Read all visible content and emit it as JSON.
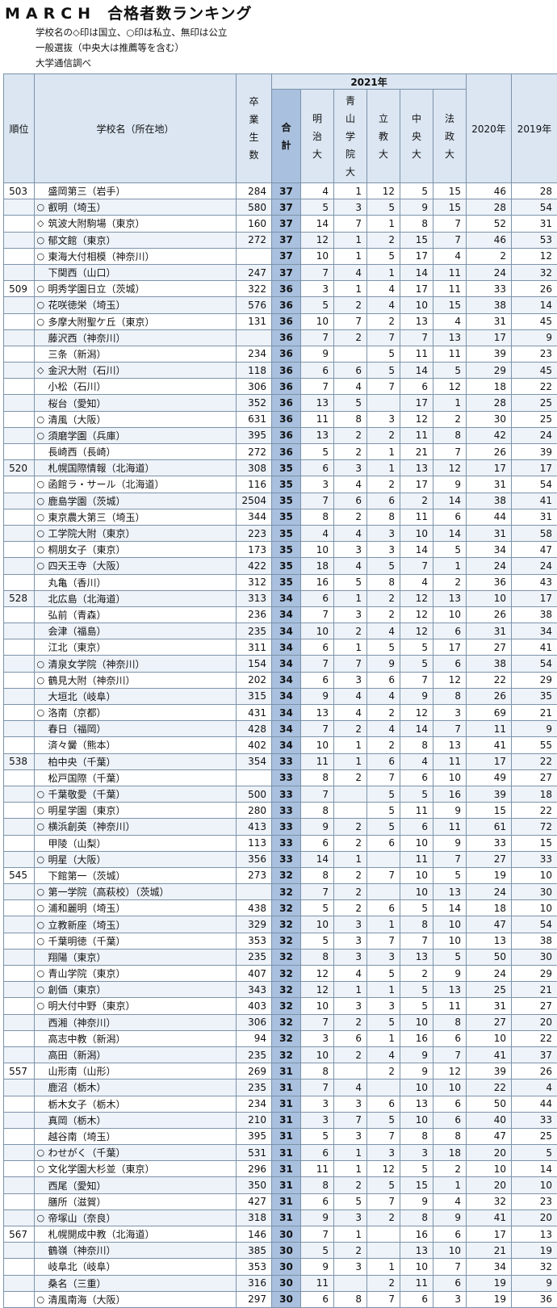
{
  "title": {
    "main": "MARCH",
    "sub": "合格者数ランキング"
  },
  "notes": [
    "学校名の◇印は国立、○印は私立、無印は公立",
    "一般選抜（中央大は推薦等を含む）",
    "大学通信調べ"
  ],
  "headers": {
    "rank": "順位",
    "school": "学校名（所在地）",
    "grads": [
      "卒",
      "業",
      "生",
      "数"
    ],
    "year": "2021年",
    "total": [
      "合",
      "計"
    ],
    "meiji": [
      "明",
      "治",
      "大"
    ],
    "aoyama": [
      "青",
      "山",
      "学",
      "院",
      "大"
    ],
    "rikkyo": [
      "立",
      "教",
      "大"
    ],
    "chuo": [
      "中",
      "央",
      "大"
    ],
    "hosei": [
      "法",
      "政",
      "大"
    ],
    "y2020": "2020年",
    "y2019": "2019年"
  },
  "rows": [
    [
      "503",
      "",
      "盛岡第三（岩手）",
      "284",
      "37",
      "4",
      "1",
      "12",
      "5",
      "15",
      "46",
      "28"
    ],
    [
      "",
      "○",
      "叡明（埼玉）",
      "580",
      "37",
      "5",
      "3",
      "5",
      "9",
      "15",
      "28",
      "54"
    ],
    [
      "",
      "◇",
      "筑波大附駒場（東京）",
      "160",
      "37",
      "14",
      "7",
      "1",
      "8",
      "7",
      "52",
      "31"
    ],
    [
      "",
      "○",
      "郁文館（東京）",
      "272",
      "37",
      "12",
      "1",
      "2",
      "15",
      "7",
      "46",
      "53"
    ],
    [
      "",
      "○",
      "東海大付相模（神奈川）",
      "",
      "37",
      "10",
      "1",
      "5",
      "17",
      "4",
      "2",
      "12"
    ],
    [
      "",
      "",
      "下関西（山口）",
      "247",
      "37",
      "7",
      "4",
      "1",
      "14",
      "11",
      "24",
      "32"
    ],
    [
      "509",
      "○",
      "明秀学園日立（茨城）",
      "322",
      "36",
      "3",
      "1",
      "4",
      "17",
      "11",
      "33",
      "26"
    ],
    [
      "",
      "○",
      "花咲徳栄（埼玉）",
      "576",
      "36",
      "5",
      "2",
      "4",
      "10",
      "15",
      "38",
      "14"
    ],
    [
      "",
      "○",
      "多摩大附聖ケ丘（東京）",
      "131",
      "36",
      "10",
      "7",
      "2",
      "13",
      "4",
      "31",
      "45"
    ],
    [
      "",
      "",
      "藤沢西（神奈川）",
      "",
      "36",
      "7",
      "2",
      "7",
      "7",
      "13",
      "17",
      "9"
    ],
    [
      "",
      "",
      "三条（新潟）",
      "234",
      "36",
      "9",
      "",
      "5",
      "11",
      "11",
      "39",
      "23"
    ],
    [
      "",
      "◇",
      "金沢大附（石川）",
      "118",
      "36",
      "6",
      "6",
      "5",
      "14",
      "5",
      "29",
      "45"
    ],
    [
      "",
      "",
      "小松（石川）",
      "306",
      "36",
      "7",
      "4",
      "7",
      "6",
      "12",
      "18",
      "22"
    ],
    [
      "",
      "",
      "桜台（愛知）",
      "352",
      "36",
      "13",
      "5",
      "",
      "17",
      "1",
      "28",
      "25"
    ],
    [
      "",
      "○",
      "清風（大阪）",
      "631",
      "36",
      "11",
      "8",
      "3",
      "12",
      "2",
      "30",
      "25"
    ],
    [
      "",
      "○",
      "須磨学園（兵庫）",
      "395",
      "36",
      "13",
      "2",
      "2",
      "11",
      "8",
      "42",
      "24"
    ],
    [
      "",
      "",
      "長崎西（長崎）",
      "272",
      "36",
      "5",
      "2",
      "1",
      "21",
      "7",
      "26",
      "39"
    ],
    [
      "520",
      "",
      "札幌国際情報（北海道）",
      "308",
      "35",
      "6",
      "3",
      "1",
      "13",
      "12",
      "17",
      "17"
    ],
    [
      "",
      "○",
      "函館ラ・サール（北海道）",
      "116",
      "35",
      "3",
      "4",
      "2",
      "17",
      "9",
      "31",
      "54"
    ],
    [
      "",
      "○",
      "鹿島学園（茨城）",
      "2504",
      "35",
      "7",
      "6",
      "6",
      "2",
      "14",
      "38",
      "41"
    ],
    [
      "",
      "○",
      "東京農大第三（埼玉）",
      "344",
      "35",
      "8",
      "2",
      "8",
      "11",
      "6",
      "44",
      "31"
    ],
    [
      "",
      "○",
      "工学院大附（東京）",
      "223",
      "35",
      "4",
      "4",
      "3",
      "10",
      "14",
      "31",
      "58"
    ],
    [
      "",
      "○",
      "桐朋女子（東京）",
      "173",
      "35",
      "10",
      "3",
      "3",
      "14",
      "5",
      "34",
      "47"
    ],
    [
      "",
      "○",
      "四天王寺（大阪）",
      "422",
      "35",
      "18",
      "4",
      "5",
      "7",
      "1",
      "24",
      "24"
    ],
    [
      "",
      "",
      "丸亀（香川）",
      "312",
      "35",
      "16",
      "5",
      "8",
      "4",
      "2",
      "36",
      "43"
    ],
    [
      "528",
      "",
      "北広島（北海道）",
      "313",
      "34",
      "6",
      "1",
      "2",
      "12",
      "13",
      "10",
      "17"
    ],
    [
      "",
      "",
      "弘前（青森）",
      "236",
      "34",
      "7",
      "3",
      "2",
      "12",
      "10",
      "26",
      "38"
    ],
    [
      "",
      "",
      "会津（福島）",
      "235",
      "34",
      "10",
      "2",
      "4",
      "12",
      "6",
      "31",
      "34"
    ],
    [
      "",
      "",
      "江北（東京）",
      "311",
      "34",
      "6",
      "1",
      "5",
      "5",
      "17",
      "27",
      "41"
    ],
    [
      "",
      "○",
      "清泉女学院（神奈川）",
      "154",
      "34",
      "7",
      "7",
      "9",
      "5",
      "6",
      "38",
      "54"
    ],
    [
      "",
      "○",
      "鶴見大附（神奈川）",
      "202",
      "34",
      "6",
      "3",
      "6",
      "7",
      "12",
      "22",
      "29"
    ],
    [
      "",
      "",
      "大垣北（岐阜）",
      "315",
      "34",
      "9",
      "4",
      "4",
      "9",
      "8",
      "26",
      "35"
    ],
    [
      "",
      "○",
      "洛南（京都）",
      "431",
      "34",
      "13",
      "4",
      "2",
      "12",
      "3",
      "69",
      "21"
    ],
    [
      "",
      "",
      "春日（福岡）",
      "428",
      "34",
      "7",
      "2",
      "4",
      "14",
      "7",
      "11",
      "9"
    ],
    [
      "",
      "",
      "済々黌（熊本）",
      "402",
      "34",
      "10",
      "1",
      "2",
      "8",
      "13",
      "41",
      "55"
    ],
    [
      "538",
      "",
      "柏中央（千葉）",
      "354",
      "33",
      "11",
      "1",
      "6",
      "4",
      "11",
      "17",
      "22"
    ],
    [
      "",
      "",
      "松戸国際（千葉）",
      "",
      "33",
      "8",
      "2",
      "7",
      "6",
      "10",
      "49",
      "27"
    ],
    [
      "",
      "○",
      "千葉敬愛（千葉）",
      "500",
      "33",
      "7",
      "",
      "5",
      "5",
      "16",
      "39",
      "18"
    ],
    [
      "",
      "○",
      "明星学園（東京）",
      "280",
      "33",
      "8",
      "",
      "5",
      "11",
      "9",
      "15",
      "22"
    ],
    [
      "",
      "○",
      "横浜創英（神奈川）",
      "413",
      "33",
      "9",
      "2",
      "5",
      "6",
      "11",
      "61",
      "72"
    ],
    [
      "",
      "",
      "甲陵（山梨）",
      "113",
      "33",
      "6",
      "2",
      "6",
      "10",
      "9",
      "33",
      "15"
    ],
    [
      "",
      "○",
      "明星（大阪）",
      "356",
      "33",
      "14",
      "1",
      "",
      "11",
      "7",
      "27",
      "33"
    ],
    [
      "545",
      "",
      "下館第一（茨城）",
      "273",
      "32",
      "8",
      "2",
      "7",
      "10",
      "5",
      "19",
      "10"
    ],
    [
      "",
      "○",
      "第一学院（高萩校）（茨城）",
      "",
      "32",
      "7",
      "2",
      "",
      "10",
      "13",
      "24",
      "30"
    ],
    [
      "",
      "○",
      "浦和麗明（埼玉）",
      "438",
      "32",
      "5",
      "2",
      "6",
      "5",
      "14",
      "18",
      "10"
    ],
    [
      "",
      "○",
      "立教新座（埼玉）",
      "329",
      "32",
      "10",
      "3",
      "1",
      "8",
      "10",
      "47",
      "54"
    ],
    [
      "",
      "○",
      "千葉明徳（千葉）",
      "353",
      "32",
      "5",
      "3",
      "7",
      "7",
      "10",
      "13",
      "38"
    ],
    [
      "",
      "",
      "翔陽（東京）",
      "235",
      "32",
      "8",
      "3",
      "3",
      "13",
      "5",
      "50",
      "30"
    ],
    [
      "",
      "○",
      "青山学院（東京）",
      "407",
      "32",
      "12",
      "4",
      "5",
      "2",
      "9",
      "24",
      "29"
    ],
    [
      "",
      "○",
      "創価（東京）",
      "343",
      "32",
      "12",
      "1",
      "1",
      "5",
      "13",
      "25",
      "21"
    ],
    [
      "",
      "○",
      "明大付中野（東京）",
      "403",
      "32",
      "10",
      "3",
      "3",
      "5",
      "11",
      "31",
      "27"
    ],
    [
      "",
      "",
      "西湘（神奈川）",
      "306",
      "32",
      "7",
      "2",
      "5",
      "10",
      "8",
      "27",
      "20"
    ],
    [
      "",
      "",
      "高志中教（新潟）",
      "94",
      "32",
      "3",
      "6",
      "1",
      "16",
      "6",
      "10",
      "22"
    ],
    [
      "",
      "",
      "高田（新潟）",
      "235",
      "32",
      "10",
      "2",
      "4",
      "9",
      "7",
      "41",
      "37"
    ],
    [
      "557",
      "",
      "山形南（山形）",
      "269",
      "31",
      "8",
      "",
      "2",
      "9",
      "12",
      "39",
      "26"
    ],
    [
      "",
      "",
      "鹿沼（栃木）",
      "235",
      "31",
      "7",
      "4",
      "",
      "10",
      "10",
      "22",
      "4"
    ],
    [
      "",
      "",
      "栃木女子（栃木）",
      "234",
      "31",
      "3",
      "3",
      "6",
      "13",
      "6",
      "50",
      "44"
    ],
    [
      "",
      "",
      "真岡（栃木）",
      "210",
      "31",
      "3",
      "7",
      "5",
      "10",
      "6",
      "40",
      "33"
    ],
    [
      "",
      "",
      "越谷南（埼玉）",
      "395",
      "31",
      "5",
      "3",
      "7",
      "8",
      "8",
      "47",
      "25"
    ],
    [
      "",
      "○",
      "わせがく（千葉）",
      "531",
      "31",
      "6",
      "1",
      "3",
      "3",
      "18",
      "20",
      "5"
    ],
    [
      "",
      "○",
      "文化学園大杉並（東京）",
      "296",
      "31",
      "11",
      "1",
      "12",
      "5",
      "2",
      "10",
      "14"
    ],
    [
      "",
      "",
      "西尾（愛知）",
      "350",
      "31",
      "8",
      "2",
      "5",
      "15",
      "1",
      "20",
      "10"
    ],
    [
      "",
      "",
      "膳所（滋賀）",
      "427",
      "31",
      "6",
      "5",
      "7",
      "9",
      "4",
      "32",
      "23"
    ],
    [
      "",
      "○",
      "帝塚山（奈良）",
      "318",
      "31",
      "9",
      "3",
      "2",
      "8",
      "9",
      "41",
      "20"
    ],
    [
      "567",
      "",
      "札幌開成中教（北海道）",
      "146",
      "30",
      "7",
      "1",
      "",
      "16",
      "6",
      "17",
      "13"
    ],
    [
      "",
      "",
      "鶴嶺（神奈川）",
      "385",
      "30",
      "5",
      "2",
      "",
      "13",
      "10",
      "21",
      "19"
    ],
    [
      "",
      "",
      "岐阜北（岐阜）",
      "353",
      "30",
      "9",
      "3",
      "1",
      "10",
      "7",
      "34",
      "32"
    ],
    [
      "",
      "",
      "桑名（三重）",
      "316",
      "30",
      "11",
      "",
      "2",
      "11",
      "6",
      "19",
      "9"
    ],
    [
      "",
      "○",
      "清風南海（大阪）",
      "297",
      "30",
      "6",
      "8",
      "7",
      "6",
      "3",
      "19",
      "36"
    ]
  ]
}
